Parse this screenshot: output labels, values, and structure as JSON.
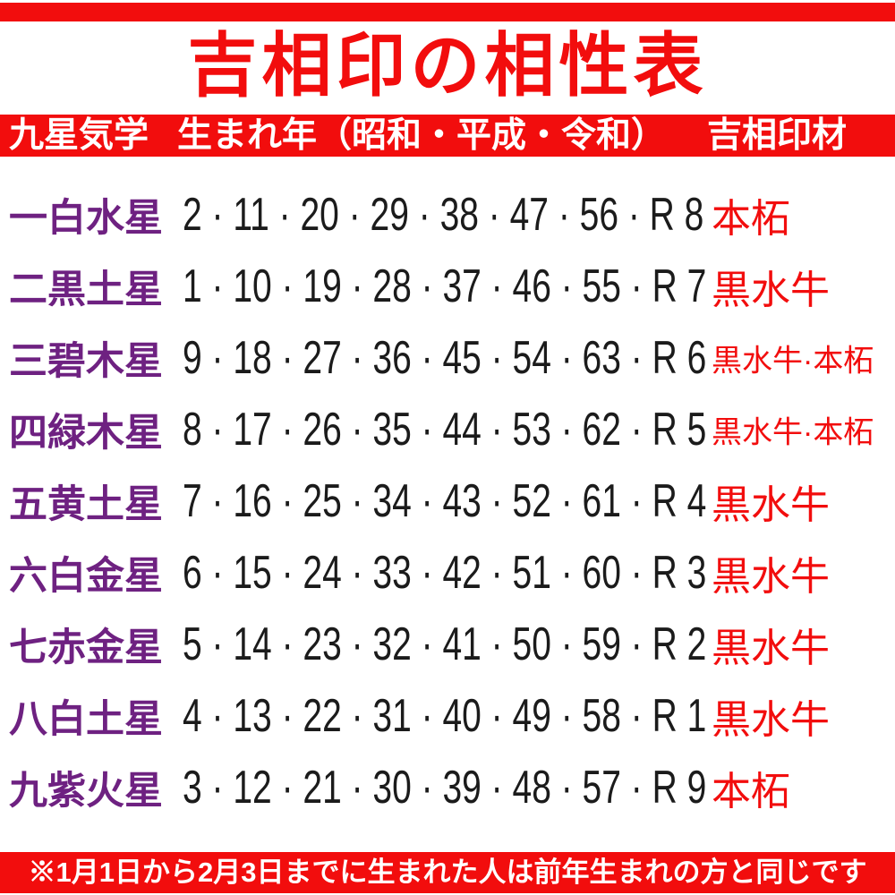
{
  "colors": {
    "red": "#f20d0d",
    "purple": "#6e2181",
    "ink": "#1b1b1b",
    "white": "#ffffff"
  },
  "title": "吉相印の相性表",
  "header": {
    "col_star": "九星気学",
    "col_year": "生まれ年（昭和・平成・令和）",
    "col_material": "吉相印材"
  },
  "rows": [
    {
      "star": "一白水星",
      "years": [
        2,
        11,
        20,
        29,
        38,
        47,
        56
      ],
      "reiwa": 8,
      "years_display": "2 · 11 · 20 · 29 · 38 · 47 · 56 · R 8",
      "material": "本柘",
      "variant": "single"
    },
    {
      "star": "二黒土星",
      "years": [
        1,
        10,
        19,
        28,
        37,
        46,
        55
      ],
      "reiwa": 7,
      "years_display": "1 · 10 · 19 · 28 · 37 · 46 · 55 · R 7",
      "material": "黒水牛",
      "variant": "single"
    },
    {
      "star": "三碧木星",
      "years": [
        9,
        18,
        27,
        36,
        45,
        54,
        63
      ],
      "reiwa": 6,
      "years_display": "9 · 18 · 27 · 36 · 45 · 54 · 63 · R 6",
      "material": "黒水牛·本柘",
      "variant": "dual"
    },
    {
      "star": "四緑木星",
      "years": [
        8,
        17,
        26,
        35,
        44,
        53,
        62
      ],
      "reiwa": 5,
      "years_display": "8 · 17 · 26 · 35 · 44 · 53 · 62 · R 5",
      "material": "黒水牛·本柘",
      "variant": "dual"
    },
    {
      "star": "五黄土星",
      "years": [
        7,
        16,
        25,
        34,
        43,
        52,
        61
      ],
      "reiwa": 4,
      "years_display": "7 · 16 · 25 · 34 · 43 · 52 · 61 · R 4",
      "material": "黒水牛",
      "variant": "single"
    },
    {
      "star": "六白金星",
      "years": [
        6,
        15,
        24,
        33,
        42,
        51,
        60
      ],
      "reiwa": 3,
      "years_display": "6 · 15 · 24 · 33 · 42 · 51 · 60 · R 3",
      "material": "黒水牛",
      "variant": "single"
    },
    {
      "star": "七赤金星",
      "years": [
        5,
        14,
        23,
        32,
        41,
        50,
        59
      ],
      "reiwa": 2,
      "years_display": "5 · 14 · 23 · 32 · 41 · 50 · 59 · R 2",
      "material": "黒水牛",
      "variant": "single"
    },
    {
      "star": "八白土星",
      "years": [
        4,
        13,
        22,
        31,
        40,
        49,
        58
      ],
      "reiwa": 1,
      "years_display": "4 · 13 · 22 · 31 · 40 · 49 · 58 · R 1",
      "material": "黒水牛",
      "variant": "single"
    },
    {
      "star": "九紫火星",
      "years": [
        3,
        12,
        21,
        30,
        39,
        48,
        57
      ],
      "reiwa": 9,
      "years_display": "3 · 12 · 21 · 30 · 39 · 48 · 57 · R 9",
      "material": "本柘",
      "variant": "single"
    }
  ],
  "footnote": "※1月1日から2月3日までに生まれた人は前年生まれの方と同じです",
  "chart_data": {
    "type": "table",
    "title": "吉相印の相性表",
    "columns": [
      "九星気学",
      "生まれ年（昭和・平成・令和）",
      "吉相印材"
    ],
    "rows": [
      [
        "一白水星",
        "2·11·20·29·38·47·56·R8",
        "本柘"
      ],
      [
        "二黒土星",
        "1·10·19·28·37·46·55·R7",
        "黒水牛"
      ],
      [
        "三碧木星",
        "9·18·27·36·45·54·63·R6",
        "黒水牛·本柘"
      ],
      [
        "四緑木星",
        "8·17·26·35·44·53·62·R5",
        "黒水牛·本柘"
      ],
      [
        "五黄土星",
        "7·16·25·34·43·52·61·R4",
        "黒水牛"
      ],
      [
        "六白金星",
        "6·15·24·33·42·51·60·R3",
        "黒水牛"
      ],
      [
        "七赤金星",
        "5·14·23·32·41·50·59·R2",
        "黒水牛"
      ],
      [
        "八白土星",
        "4·13·22·31·40·49·58·R1",
        "黒水牛"
      ],
      [
        "九紫火星",
        "3·12·21·30·39·48·57·R9",
        "本柘"
      ]
    ]
  }
}
